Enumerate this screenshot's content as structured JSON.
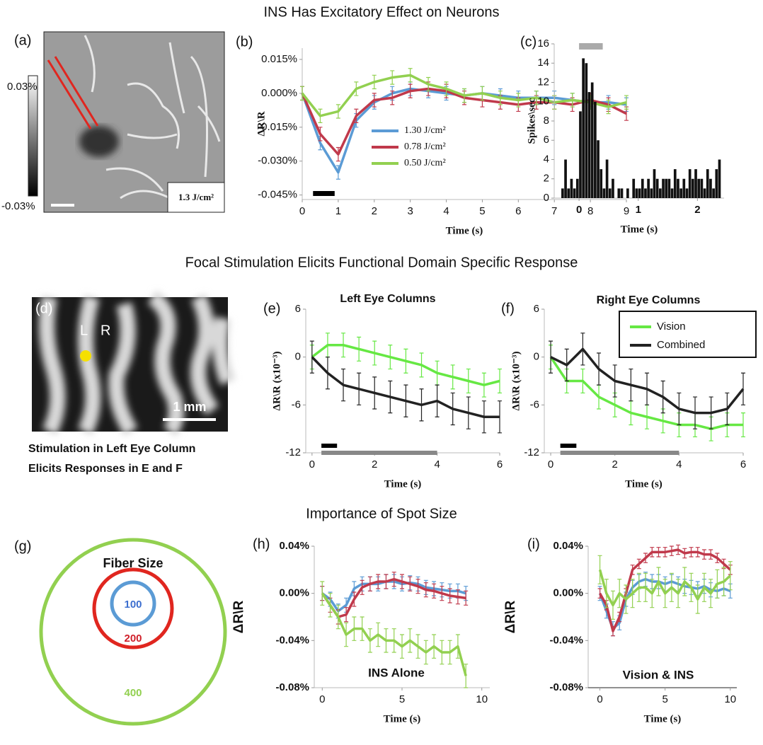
{
  "titles": [
    "INS Has Excitatory Effect on Neurons",
    "Focal Stimulation Elicits Functional Domain Specific Response",
    "Importance of Spot Size"
  ],
  "panel_a": {
    "label": "(a)",
    "colorbar_max": "0.03%",
    "colorbar_min": "-0.03%",
    "fluence": "1.3 J/cm²"
  },
  "panel_d": {
    "label": "(d)",
    "left": "L",
    "right": "R",
    "scale": "1 mm",
    "caption": [
      "Stimulation in Left Eye Column",
      "Elicits Responses in  E and F"
    ]
  },
  "panel_g": {
    "label": "(g)",
    "title": "Fiber Size",
    "sizes": [
      "100",
      "200",
      "400"
    ]
  },
  "chart_data": [
    {
      "type": "line",
      "label": "(b)",
      "ylabel": "ΔR\\R",
      "xlabel": "Time (s)",
      "x": [
        0,
        0.5,
        1,
        1.5,
        2,
        2.5,
        3,
        3.5,
        4,
        4.5,
        5,
        5.5,
        6,
        6.5,
        7,
        7.5,
        8,
        8.5,
        9
      ],
      "xlim": [
        0,
        9
      ],
      "xticks": [
        0,
        1,
        2,
        3,
        4,
        5,
        6,
        7,
        8,
        9
      ],
      "ylim": [
        -0.047,
        0.02
      ],
      "yticks": [
        {
          "value": -0.045,
          "label": "-0.045%"
        },
        {
          "value": -0.03,
          "label": "-0.030%"
        },
        {
          "value": -0.015,
          "label": "-0.015%"
        },
        {
          "value": 0,
          "label": "0.000%"
        },
        {
          "value": 0.015,
          "label": "0.015%"
        }
      ],
      "legend": true,
      "stimuli": [
        {
          "start": 0.3,
          "end": 0.9,
          "color": "#000000"
        }
      ],
      "series": [
        {
          "name": "1.30  J/cm²",
          "color": "#5b9bd5",
          "error": 0.003,
          "values": [
            0,
            -0.022,
            -0.035,
            -0.012,
            -0.004,
            0,
            0.002,
            0.001,
            0,
            -0.001,
            0,
            -0.001,
            -0.002,
            -0.002,
            -0.002,
            -0.003,
            -0.004,
            -0.004,
            -0.005
          ]
        },
        {
          "name": "0.78  J/cm²",
          "color": "#c0394b",
          "error": 0.003,
          "values": [
            0,
            -0.018,
            -0.027,
            -0.01,
            -0.003,
            -0.002,
            0.001,
            0.002,
            0.001,
            -0.002,
            -0.003,
            -0.004,
            -0.005,
            -0.004,
            -0.004,
            -0.005,
            -0.003,
            -0.005,
            -0.009
          ]
        },
        {
          "name": "0.50  J/cm²",
          "color": "#92d050",
          "error": 0.003,
          "values": [
            0,
            -0.01,
            -0.008,
            0.002,
            0.005,
            0.007,
            0.008,
            0.004,
            0.002,
            -0.001,
            0,
            -0.002,
            -0.003,
            -0.002,
            -0.004,
            -0.003,
            -0.004,
            -0.006,
            -0.004
          ]
        }
      ]
    },
    {
      "type": "histogram",
      "label": "(c)",
      "ylabel": "Spikes\\sec",
      "xlabel": "Time (s)",
      "color": "#111111",
      "bins": [
        -0.3,
        -0.25,
        -0.2,
        -0.15,
        -0.1,
        -0.05,
        0,
        0.05,
        0.1,
        0.15,
        0.2,
        0.25,
        0.3,
        0.35,
        0.4,
        0.45,
        0.5,
        0.55,
        0.6,
        0.65,
        0.7,
        0.75,
        0.8,
        0.85,
        0.9,
        0.95,
        1,
        1.05,
        1.1,
        1.15,
        1.2,
        1.25,
        1.3,
        1.35,
        1.4,
        1.45,
        1.5,
        1.55,
        1.6,
        1.65,
        1.7,
        1.75,
        1.8,
        1.85,
        1.9,
        1.95,
        2,
        2.05,
        2.1,
        2.15,
        2.2,
        2.25,
        2.3,
        2.35,
        2.4
      ],
      "values": [
        1,
        4,
        1,
        2,
        1,
        2,
        9,
        14.5,
        14,
        11,
        12,
        10,
        6,
        3,
        1,
        4,
        1,
        2,
        0,
        1,
        1,
        0,
        1,
        0,
        2,
        1,
        1,
        2,
        1,
        2,
        1,
        3,
        2,
        1,
        2,
        2,
        2,
        1,
        3,
        2,
        1,
        2,
        1,
        3,
        2,
        3,
        2,
        2,
        1,
        3,
        2,
        1,
        3,
        4
      ],
      "xlim": [
        -0.42,
        2.45
      ],
      "xticks": [
        0,
        1,
        2
      ],
      "ylim": [
        0,
        16
      ],
      "yticks": [
        0,
        2,
        4,
        6,
        8,
        10,
        12,
        14,
        16
      ],
      "stimuli": [
        {
          "start": 0,
          "end": 0.4,
          "color": "#aaaaaa"
        }
      ]
    },
    {
      "type": "line",
      "label": "(e)",
      "title": "Left Eye Columns",
      "ylabel": "ΔR\\R (x10⁻³)",
      "xlabel": "Time (s)",
      "x": [
        0,
        0.5,
        1,
        1.5,
        2,
        2.5,
        3,
        3.5,
        4,
        4.5,
        5,
        5.5,
        6
      ],
      "xlim": [
        -0.2,
        6
      ],
      "xticks": [
        0,
        2,
        4,
        6
      ],
      "ylim": [
        -12,
        6
      ],
      "yticks": [
        -12,
        -6,
        0,
        6
      ],
      "legend": false,
      "stimuli": [
        {
          "start": 0.3,
          "end": 0.8,
          "color": "#000000"
        },
        {
          "start": 0.3,
          "end": 4,
          "color": "#888888"
        }
      ],
      "series": [
        {
          "color": "#66e843",
          "error": 1.5,
          "values": [
            0,
            1.5,
            1.5,
            1,
            0.5,
            0,
            -0.5,
            -1,
            -2,
            -2.5,
            -3,
            -3.5,
            -3
          ]
        },
        {
          "color": "#222222",
          "error": 2,
          "values": [
            0,
            -2,
            -3.5,
            -4,
            -4.5,
            -5,
            -5.5,
            -6,
            -5.5,
            -6.5,
            -7,
            -7.5,
            -7.5
          ]
        }
      ]
    },
    {
      "type": "line",
      "label": "(f)",
      "title": "Right Eye Columns",
      "ylabel": "ΔR\\R (x10⁻³)",
      "xlabel": "Time (s)",
      "x": [
        0,
        0.5,
        1,
        1.5,
        2,
        2.5,
        3,
        3.5,
        4,
        4.5,
        5,
        5.5,
        6
      ],
      "xlim": [
        -0.2,
        6
      ],
      "xticks": [
        0,
        2,
        4,
        6
      ],
      "ylim": [
        -12,
        6
      ],
      "yticks": [
        -12,
        -6,
        0,
        6
      ],
      "legend": true,
      "stimuli": [
        {
          "start": 0.3,
          "end": 0.8,
          "color": "#000000"
        },
        {
          "start": 0.3,
          "end": 4,
          "color": "#888888"
        }
      ],
      "series": [
        {
          "name": "Vision",
          "color": "#66e843",
          "error": 1.5,
          "values": [
            0,
            -3,
            -3,
            -5,
            -6,
            -7,
            -7.5,
            -8,
            -8.5,
            -8.5,
            -9,
            -8.5,
            -8.5
          ]
        },
        {
          "name": "Combined",
          "color": "#222222",
          "error": 2,
          "values": [
            0,
            -1,
            1,
            -1.5,
            -3,
            -3.5,
            -4,
            -5,
            -6.5,
            -7,
            -7,
            -6.5,
            -4
          ]
        }
      ]
    },
    {
      "type": "line",
      "label": "(h)",
      "annotation": "INS Alone",
      "ylabel": "ΔR\\R",
      "xlabel": "Time (s)",
      "x": [
        0,
        0.5,
        1,
        1.5,
        2,
        2.5,
        3,
        3.5,
        4,
        4.5,
        5,
        5.5,
        6,
        6.5,
        7,
        7.5,
        8,
        8.5,
        9
      ],
      "xlim": [
        -0.5,
        10.5
      ],
      "xticks": [
        0,
        5,
        10
      ],
      "ylim": [
        -0.08,
        0.04
      ],
      "yticks": [
        {
          "value": -0.08,
          "label": "-0.08%"
        },
        {
          "value": -0.04,
          "label": "-0.04%"
        },
        {
          "value": 0,
          "label": "0.00%"
        },
        {
          "value": 0.04,
          "label": "0.04%"
        }
      ],
      "legend": false,
      "series": [
        {
          "color": "#5b9bd5",
          "error": 0.006,
          "values": [
            0,
            -0.005,
            -0.015,
            -0.01,
            0.004,
            0.008,
            0.008,
            0.008,
            0.01,
            0.01,
            0.008,
            0.009,
            0.008,
            0.005,
            0.004,
            0.003,
            0.002,
            0.002,
            0
          ]
        },
        {
          "color": "#c0394b",
          "error": 0.006,
          "values": [
            0,
            -0.01,
            -0.02,
            -0.018,
            -0.005,
            0.005,
            0.008,
            0.01,
            0.01,
            0.012,
            0.01,
            0.008,
            0.006,
            0.003,
            0.002,
            0,
            -0.002,
            -0.003,
            -0.004
          ]
        },
        {
          "color": "#92d050",
          "error": 0.01,
          "values": [
            0,
            -0.01,
            -0.02,
            -0.035,
            -0.03,
            -0.03,
            -0.04,
            -0.035,
            -0.04,
            -0.04,
            -0.045,
            -0.04,
            -0.045,
            -0.05,
            -0.045,
            -0.05,
            -0.05,
            -0.045,
            -0.07
          ]
        }
      ]
    },
    {
      "type": "line",
      "label": "(i)",
      "annotation": "Vision & INS",
      "ylabel": "ΔR\\R",
      "xlabel": "Time (s)",
      "x": [
        0,
        0.5,
        1,
        1.5,
        2,
        2.5,
        3,
        3.5,
        4,
        4.5,
        5,
        5.5,
        6,
        6.5,
        7,
        7.5,
        8,
        8.5,
        9,
        9.5,
        10
      ],
      "xlim": [
        -0.9,
        10.5
      ],
      "xticks": [
        0,
        5,
        10
      ],
      "ylim": [
        -0.08,
        0.04
      ],
      "yticks": [
        {
          "value": -0.08,
          "label": "-0.08%"
        },
        {
          "value": -0.04,
          "label": "-0.04%"
        },
        {
          "value": 0,
          "label": "0.00%"
        },
        {
          "value": 0.04,
          "label": "0.04%"
        }
      ],
      "legend": false,
      "series": [
        {
          "color": "#5b9bd5",
          "error": 0.006,
          "values": [
            0,
            -0.015,
            -0.03,
            -0.025,
            -0.005,
            0.005,
            0.01,
            0.012,
            0.01,
            0.01,
            0.008,
            0.01,
            0.008,
            0.006,
            0.005,
            0.004,
            0.006,
            0.003,
            0.002,
            0.004,
            0.002
          ]
        },
        {
          "color": "#c0394b",
          "error": 0.004,
          "values": [
            0,
            -0.01,
            -0.032,
            -0.02,
            0,
            0.02,
            0.025,
            0.03,
            0.035,
            0.035,
            0.035,
            0.036,
            0.037,
            0.034,
            0.035,
            0.035,
            0.033,
            0.033,
            0.03,
            0.025,
            0.02
          ]
        },
        {
          "color": "#92d050",
          "error": 0.012,
          "values": [
            0.02,
            0,
            -0.01,
            0,
            -0.005,
            0,
            0.005,
            0.005,
            0,
            0.01,
            0,
            0.005,
            0,
            0.01,
            0.005,
            -0.005,
            0.005,
            0,
            0.008,
            0.01,
            0.015
          ]
        }
      ]
    }
  ]
}
